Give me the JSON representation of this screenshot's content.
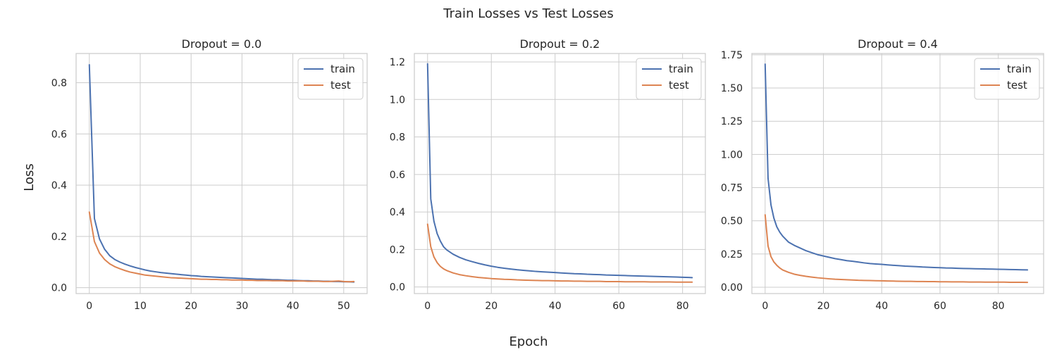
{
  "figure": {
    "title": "Train Losses vs Test Losses",
    "xlabel": "Epoch",
    "ylabel": "Loss"
  },
  "colors": {
    "train": "#4c72b0",
    "test": "#dd8452",
    "grid": "#cccccc",
    "spine": "#cccccc"
  },
  "legend": {
    "placement": "top-right",
    "entries": [
      "train",
      "test"
    ]
  },
  "chart_data": [
    {
      "type": "line",
      "title": "Dropout = 0.0",
      "xlim": [
        -2.6,
        54.6
      ],
      "ylim": [
        -0.023,
        0.914
      ],
      "xticks": [
        0,
        10,
        20,
        30,
        40,
        50
      ],
      "xtick_labels": [
        "0",
        "10",
        "20",
        "30",
        "40",
        "50"
      ],
      "yticks": [
        0.0,
        0.2,
        0.4,
        0.6,
        0.8
      ],
      "ytick_labels": [
        "0.0",
        "0.2",
        "0.4",
        "0.6",
        "0.8"
      ],
      "grid": true,
      "series": [
        {
          "name": "train",
          "x": [
            0,
            1,
            2,
            3,
            4,
            5,
            6,
            7,
            8,
            9,
            10,
            11,
            12,
            13,
            14,
            15,
            16,
            17,
            18,
            19,
            20,
            21,
            22,
            23,
            24,
            25,
            26,
            27,
            28,
            29,
            30,
            31,
            32,
            33,
            34,
            35,
            36,
            37,
            38,
            39,
            40,
            41,
            42,
            43,
            44,
            45,
            46,
            47,
            48,
            49,
            50,
            51,
            52
          ],
          "y": [
            0.87,
            0.27,
            0.19,
            0.15,
            0.125,
            0.11,
            0.1,
            0.092,
            0.085,
            0.079,
            0.074,
            0.069,
            0.065,
            0.062,
            0.059,
            0.057,
            0.055,
            0.053,
            0.051,
            0.049,
            0.047,
            0.046,
            0.044,
            0.043,
            0.042,
            0.041,
            0.04,
            0.039,
            0.038,
            0.037,
            0.036,
            0.035,
            0.034,
            0.033,
            0.033,
            0.032,
            0.031,
            0.031,
            0.03,
            0.029,
            0.029,
            0.028,
            0.027,
            0.027,
            0.026,
            0.026,
            0.025,
            0.025,
            0.024,
            0.024,
            0.023,
            0.023,
            0.022
          ]
        },
        {
          "name": "test",
          "x": [
            0,
            1,
            2,
            3,
            4,
            5,
            6,
            7,
            8,
            9,
            10,
            11,
            12,
            13,
            14,
            15,
            16,
            17,
            18,
            19,
            20,
            21,
            22,
            23,
            24,
            25,
            26,
            27,
            28,
            29,
            30,
            31,
            32,
            33,
            34,
            35,
            36,
            37,
            38,
            39,
            40,
            41,
            42,
            43,
            44,
            45,
            46,
            47,
            48,
            49,
            50,
            51,
            52
          ],
          "y": [
            0.295,
            0.18,
            0.135,
            0.11,
            0.093,
            0.082,
            0.074,
            0.067,
            0.061,
            0.057,
            0.053,
            0.049,
            0.047,
            0.045,
            0.043,
            0.041,
            0.039,
            0.038,
            0.037,
            0.036,
            0.035,
            0.034,
            0.033,
            0.033,
            0.032,
            0.032,
            0.031,
            0.031,
            0.03,
            0.03,
            0.03,
            0.029,
            0.029,
            0.028,
            0.028,
            0.028,
            0.027,
            0.027,
            0.027,
            0.026,
            0.026,
            0.026,
            0.026,
            0.025,
            0.025,
            0.025,
            0.024,
            0.024,
            0.025,
            0.026,
            0.024,
            0.023,
            0.024
          ]
        }
      ]
    },
    {
      "type": "line",
      "title": "Dropout = 0.2",
      "xlim": [
        -4.15,
        87.15
      ],
      "ylim": [
        -0.035,
        1.245
      ],
      "xticks": [
        0,
        20,
        40,
        60,
        80
      ],
      "xtick_labels": [
        "0",
        "20",
        "40",
        "60",
        "80"
      ],
      "yticks": [
        0.0,
        0.2,
        0.4,
        0.6,
        0.8,
        1.0,
        1.2
      ],
      "ytick_labels": [
        "0.0",
        "0.2",
        "0.4",
        "0.6",
        "0.8",
        "1.0",
        "1.2"
      ],
      "grid": true,
      "series": [
        {
          "name": "train",
          "x": [
            0,
            1,
            2,
            3,
            4,
            5,
            6,
            8,
            10,
            12,
            14,
            16,
            18,
            20,
            22,
            24,
            26,
            28,
            30,
            32,
            34,
            36,
            38,
            40,
            42,
            44,
            46,
            48,
            50,
            52,
            54,
            56,
            58,
            60,
            62,
            64,
            66,
            68,
            70,
            72,
            74,
            76,
            78,
            80,
            82,
            83
          ],
          "y": [
            1.19,
            0.47,
            0.35,
            0.285,
            0.245,
            0.215,
            0.198,
            0.175,
            0.158,
            0.145,
            0.135,
            0.126,
            0.118,
            0.111,
            0.105,
            0.1,
            0.096,
            0.092,
            0.089,
            0.086,
            0.083,
            0.081,
            0.079,
            0.077,
            0.075,
            0.073,
            0.071,
            0.07,
            0.068,
            0.067,
            0.066,
            0.064,
            0.063,
            0.062,
            0.061,
            0.06,
            0.059,
            0.058,
            0.057,
            0.056,
            0.055,
            0.054,
            0.053,
            0.052,
            0.051,
            0.05
          ]
        },
        {
          "name": "test",
          "x": [
            0,
            1,
            2,
            3,
            4,
            5,
            6,
            8,
            10,
            12,
            14,
            16,
            18,
            20,
            22,
            24,
            26,
            28,
            30,
            32,
            34,
            36,
            38,
            40,
            42,
            44,
            46,
            48,
            50,
            52,
            54,
            56,
            58,
            60,
            62,
            64,
            66,
            68,
            70,
            72,
            74,
            76,
            78,
            80,
            82,
            83
          ],
          "y": [
            0.335,
            0.215,
            0.16,
            0.13,
            0.11,
            0.097,
            0.088,
            0.075,
            0.066,
            0.06,
            0.055,
            0.051,
            0.048,
            0.045,
            0.043,
            0.041,
            0.04,
            0.038,
            0.037,
            0.036,
            0.035,
            0.034,
            0.034,
            0.033,
            0.032,
            0.032,
            0.031,
            0.031,
            0.03,
            0.03,
            0.03,
            0.029,
            0.029,
            0.029,
            0.028,
            0.028,
            0.028,
            0.028,
            0.027,
            0.027,
            0.027,
            0.027,
            0.026,
            0.026,
            0.026,
            0.026
          ]
        }
      ]
    },
    {
      "type": "line",
      "title": "Dropout = 0.4",
      "xlim": [
        -4.55,
        95.55
      ],
      "ylim": [
        -0.048,
        1.76
      ],
      "xticks": [
        0,
        20,
        40,
        60,
        80
      ],
      "xtick_labels": [
        "0",
        "20",
        "40",
        "60",
        "80"
      ],
      "yticks": [
        0.0,
        0.25,
        0.5,
        0.75,
        1.0,
        1.25,
        1.5,
        1.75
      ],
      "ytick_labels": [
        "0.00",
        "0.25",
        "0.50",
        "0.75",
        "1.00",
        "1.25",
        "1.50",
        "1.75"
      ],
      "grid": true,
      "series": [
        {
          "name": "train",
          "x": [
            0,
            1,
            2,
            3,
            4,
            5,
            6,
            8,
            10,
            12,
            14,
            16,
            18,
            20,
            22,
            24,
            26,
            28,
            30,
            32,
            34,
            36,
            38,
            40,
            42,
            44,
            46,
            48,
            50,
            52,
            54,
            56,
            58,
            60,
            62,
            64,
            66,
            68,
            70,
            72,
            74,
            76,
            78,
            80,
            82,
            84,
            86,
            88,
            90
          ],
          "y": [
            1.68,
            0.82,
            0.62,
            0.52,
            0.455,
            0.415,
            0.385,
            0.34,
            0.315,
            0.295,
            0.275,
            0.26,
            0.245,
            0.235,
            0.225,
            0.215,
            0.208,
            0.2,
            0.195,
            0.189,
            0.183,
            0.178,
            0.175,
            0.172,
            0.168,
            0.165,
            0.162,
            0.159,
            0.157,
            0.155,
            0.152,
            0.15,
            0.148,
            0.147,
            0.145,
            0.144,
            0.142,
            0.141,
            0.14,
            0.139,
            0.138,
            0.137,
            0.136,
            0.135,
            0.134,
            0.133,
            0.132,
            0.131,
            0.13
          ]
        },
        {
          "name": "test",
          "x": [
            0,
            1,
            2,
            3,
            4,
            5,
            6,
            8,
            10,
            12,
            14,
            16,
            18,
            20,
            22,
            24,
            26,
            28,
            30,
            32,
            34,
            36,
            38,
            40,
            42,
            44,
            46,
            48,
            50,
            52,
            54,
            56,
            58,
            60,
            62,
            64,
            66,
            68,
            70,
            72,
            74,
            76,
            78,
            80,
            82,
            84,
            86,
            88,
            90
          ],
          "y": [
            0.545,
            0.31,
            0.23,
            0.19,
            0.165,
            0.145,
            0.13,
            0.112,
            0.098,
            0.089,
            0.082,
            0.076,
            0.071,
            0.067,
            0.063,
            0.06,
            0.058,
            0.056,
            0.054,
            0.052,
            0.051,
            0.05,
            0.049,
            0.048,
            0.047,
            0.046,
            0.045,
            0.044,
            0.044,
            0.043,
            0.043,
            0.042,
            0.042,
            0.041,
            0.041,
            0.04,
            0.04,
            0.04,
            0.039,
            0.039,
            0.039,
            0.038,
            0.038,
            0.038,
            0.038,
            0.037,
            0.037,
            0.037,
            0.036
          ]
        }
      ]
    }
  ]
}
